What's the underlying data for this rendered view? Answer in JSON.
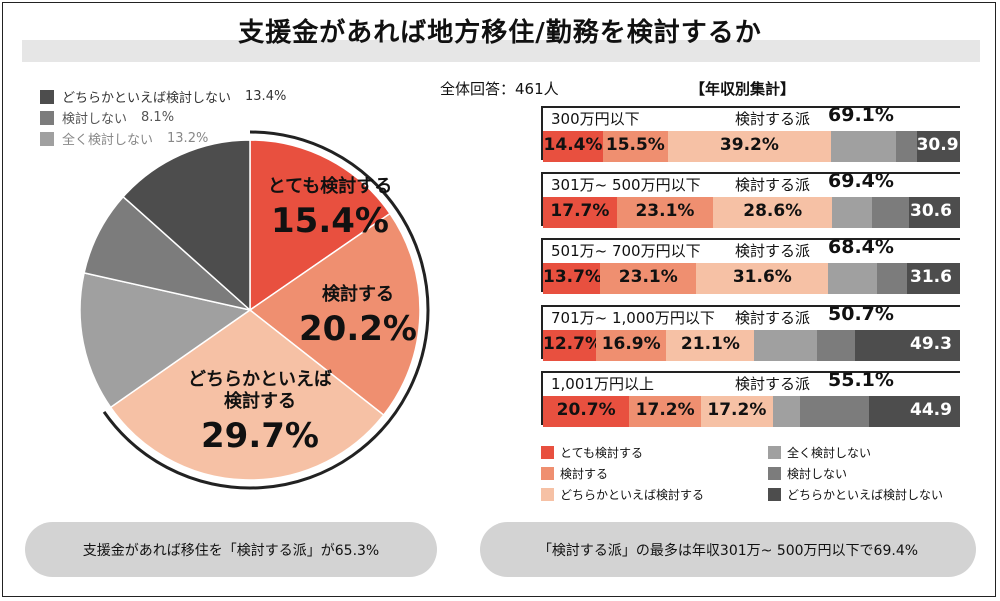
{
  "title": "支援金があれば地方移住/勤務を検討するか",
  "colors": {
    "very_consider": "#e8503f",
    "consider": "#ef8f70",
    "somewhat_consider": "#f6c1a5",
    "not_at_all": "#a0a0a0",
    "not_consider": "#7c7c7c",
    "somewhat_not": "#4d4d4d"
  },
  "pie_legend": [
    {
      "label": "どちらかといえば検討しない",
      "value": "13.4%"
    },
    {
      "label": "検討しない",
      "value": "8.1%"
    },
    {
      "label": "全く検討しない",
      "value": "13.2%"
    }
  ],
  "respondents": "全体回答：461人",
  "income_title": "【年収別集計】",
  "bar_legend": [
    "とても検討する",
    "検討する",
    "どちらかといえば検討する",
    "全く検討しない",
    "検討しない",
    "どちらかといえば検討しない"
  ],
  "pill_left": "支援金があれば移住を「検討する派」が65.3%",
  "pill_right": "「検討する派」の最多は年収301万~ 500万円以下で69.4%",
  "chart_data": [
    {
      "type": "pie",
      "slices": [
        {
          "name": "とても検討する",
          "value": 15.4,
          "label_lines": [
            "とても検討する"
          ],
          "value_label": "15.4%"
        },
        {
          "name": "検討する",
          "value": 20.2,
          "label_lines": [
            "検討する"
          ],
          "value_label": "20.2%"
        },
        {
          "name": "どちらかといえば検討する",
          "value": 29.7,
          "label_lines": [
            "どちらかといえば",
            "検討する"
          ],
          "value_label": "29.7%"
        },
        {
          "name": "全く検討しない",
          "value": 13.2
        },
        {
          "name": "検討しない",
          "value": 8.1
        },
        {
          "name": "どちらかといえば検討しない",
          "value": 13.4
        }
      ]
    },
    {
      "type": "bar",
      "stacked": true,
      "orientation": "horizontal",
      "consider_prefix": "検討する派",
      "categories": [
        "300万円以下",
        "301万~ 500万円以下",
        "501万~ 700万円以下",
        "701万~ 1,000万円以下",
        "1,001万円以上"
      ],
      "consider_totals": [
        "69.1%",
        "69.4%",
        "68.4%",
        "50.7%",
        "55.1%"
      ],
      "series": [
        {
          "name": "とても検討する",
          "values": [
            14.4,
            17.7,
            13.7,
            12.7,
            20.7
          ],
          "labels": [
            "14.4%",
            "17.7%",
            "13.7%",
            "12.7%",
            "20.7%"
          ]
        },
        {
          "name": "検討する",
          "values": [
            15.5,
            23.1,
            23.1,
            16.9,
            17.2
          ],
          "labels": [
            "15.5%",
            "23.1%",
            "23.1%",
            "16.9%",
            "17.2%"
          ]
        },
        {
          "name": "どちらかといえば検討する",
          "values": [
            39.2,
            28.6,
            31.6,
            21.1,
            17.2
          ],
          "labels": [
            "39.2%",
            "28.6%",
            "31.6%",
            "21.1%",
            "17.2%"
          ]
        },
        {
          "name": "全く検討しない",
          "values": [
            15.6,
            9.5,
            11.8,
            15.0,
            6.5
          ]
        },
        {
          "name": "検討しない",
          "values": [
            4.9,
            9.0,
            7.0,
            9.2,
            16.6
          ]
        },
        {
          "name": "どちらかといえば検討しない",
          "values": [
            10.4,
            12.1,
            12.8,
            25.1,
            21.8
          ]
        }
      ],
      "not_consider_totals": [
        "30.9",
        "30.6",
        "31.6",
        "49.3",
        "44.9"
      ]
    }
  ]
}
